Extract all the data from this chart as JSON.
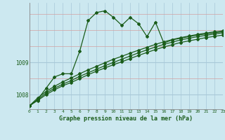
{
  "title": "Graphe pression niveau de la mer (hPa)",
  "bg_color": "#cce8f0",
  "plot_bg_color": "#cce8f0",
  "line_color": "#1a5c1a",
  "grid_color": "#a8c8d8",
  "red_grid_color": "#d4a0a0",
  "xlim": [
    0,
    23
  ],
  "ylim": [
    1007.55,
    1010.85
  ],
  "yticks": [
    1008,
    1009
  ],
  "xticks": [
    0,
    1,
    2,
    3,
    4,
    5,
    6,
    7,
    8,
    9,
    10,
    11,
    12,
    13,
    14,
    15,
    16,
    17,
    18,
    19,
    20,
    21,
    22,
    23
  ],
  "series": [
    {
      "x": [
        0,
        1,
        2,
        3,
        4,
        5,
        6,
        7,
        8,
        9,
        10,
        11,
        12,
        13,
        14,
        15,
        16,
        17,
        18,
        19,
        20,
        21,
        22,
        23
      ],
      "y": [
        1007.65,
        1007.85,
        1008.2,
        1008.55,
        1008.65,
        1008.65,
        1009.35,
        1010.3,
        1010.55,
        1010.6,
        1010.4,
        1010.15,
        1010.4,
        1010.2,
        1009.8,
        1010.25,
        1009.6,
        1009.7,
        1009.75,
        1009.8,
        1009.85,
        1009.88,
        1009.92,
        1009.95
      ],
      "marker": "D",
      "markersize": 2.0,
      "lw": 0.9
    },
    {
      "x": [
        0,
        1,
        2,
        3,
        4,
        5,
        6,
        7,
        8,
        9,
        10,
        11,
        12,
        13,
        14,
        15,
        16,
        17,
        18,
        19,
        20,
        21,
        22,
        23
      ],
      "y": [
        1007.65,
        1007.82,
        1008.0,
        1008.15,
        1008.28,
        1008.38,
        1008.5,
        1008.62,
        1008.73,
        1008.83,
        1008.93,
        1009.02,
        1009.12,
        1009.22,
        1009.31,
        1009.4,
        1009.48,
        1009.55,
        1009.62,
        1009.67,
        1009.72,
        1009.77,
        1009.81,
        1009.85
      ],
      "marker": "D",
      "markersize": 2.0,
      "lw": 0.9
    },
    {
      "x": [
        0,
        1,
        2,
        3,
        4,
        5,
        6,
        7,
        8,
        9,
        10,
        11,
        12,
        13,
        14,
        15,
        16,
        17,
        18,
        19,
        20,
        21,
        22,
        23
      ],
      "y": [
        1007.65,
        1007.85,
        1008.05,
        1008.2,
        1008.33,
        1008.44,
        1008.57,
        1008.68,
        1008.79,
        1008.9,
        1009.0,
        1009.1,
        1009.2,
        1009.3,
        1009.39,
        1009.48,
        1009.56,
        1009.63,
        1009.7,
        1009.75,
        1009.8,
        1009.84,
        1009.88,
        1009.92
      ],
      "marker": "D",
      "markersize": 2.0,
      "lw": 0.9
    },
    {
      "x": [
        0,
        1,
        2,
        3,
        4,
        5,
        6,
        7,
        8,
        9,
        10,
        11,
        12,
        13,
        14,
        15,
        16,
        17,
        18,
        19,
        20,
        21,
        22,
        23
      ],
      "y": [
        1007.65,
        1007.9,
        1008.1,
        1008.26,
        1008.4,
        1008.52,
        1008.65,
        1008.77,
        1008.88,
        1008.99,
        1009.1,
        1009.19,
        1009.29,
        1009.38,
        1009.47,
        1009.56,
        1009.64,
        1009.71,
        1009.77,
        1009.82,
        1009.87,
        1009.91,
        1009.95,
        1009.98
      ],
      "marker": "D",
      "markersize": 2.0,
      "lw": 0.9
    }
  ]
}
